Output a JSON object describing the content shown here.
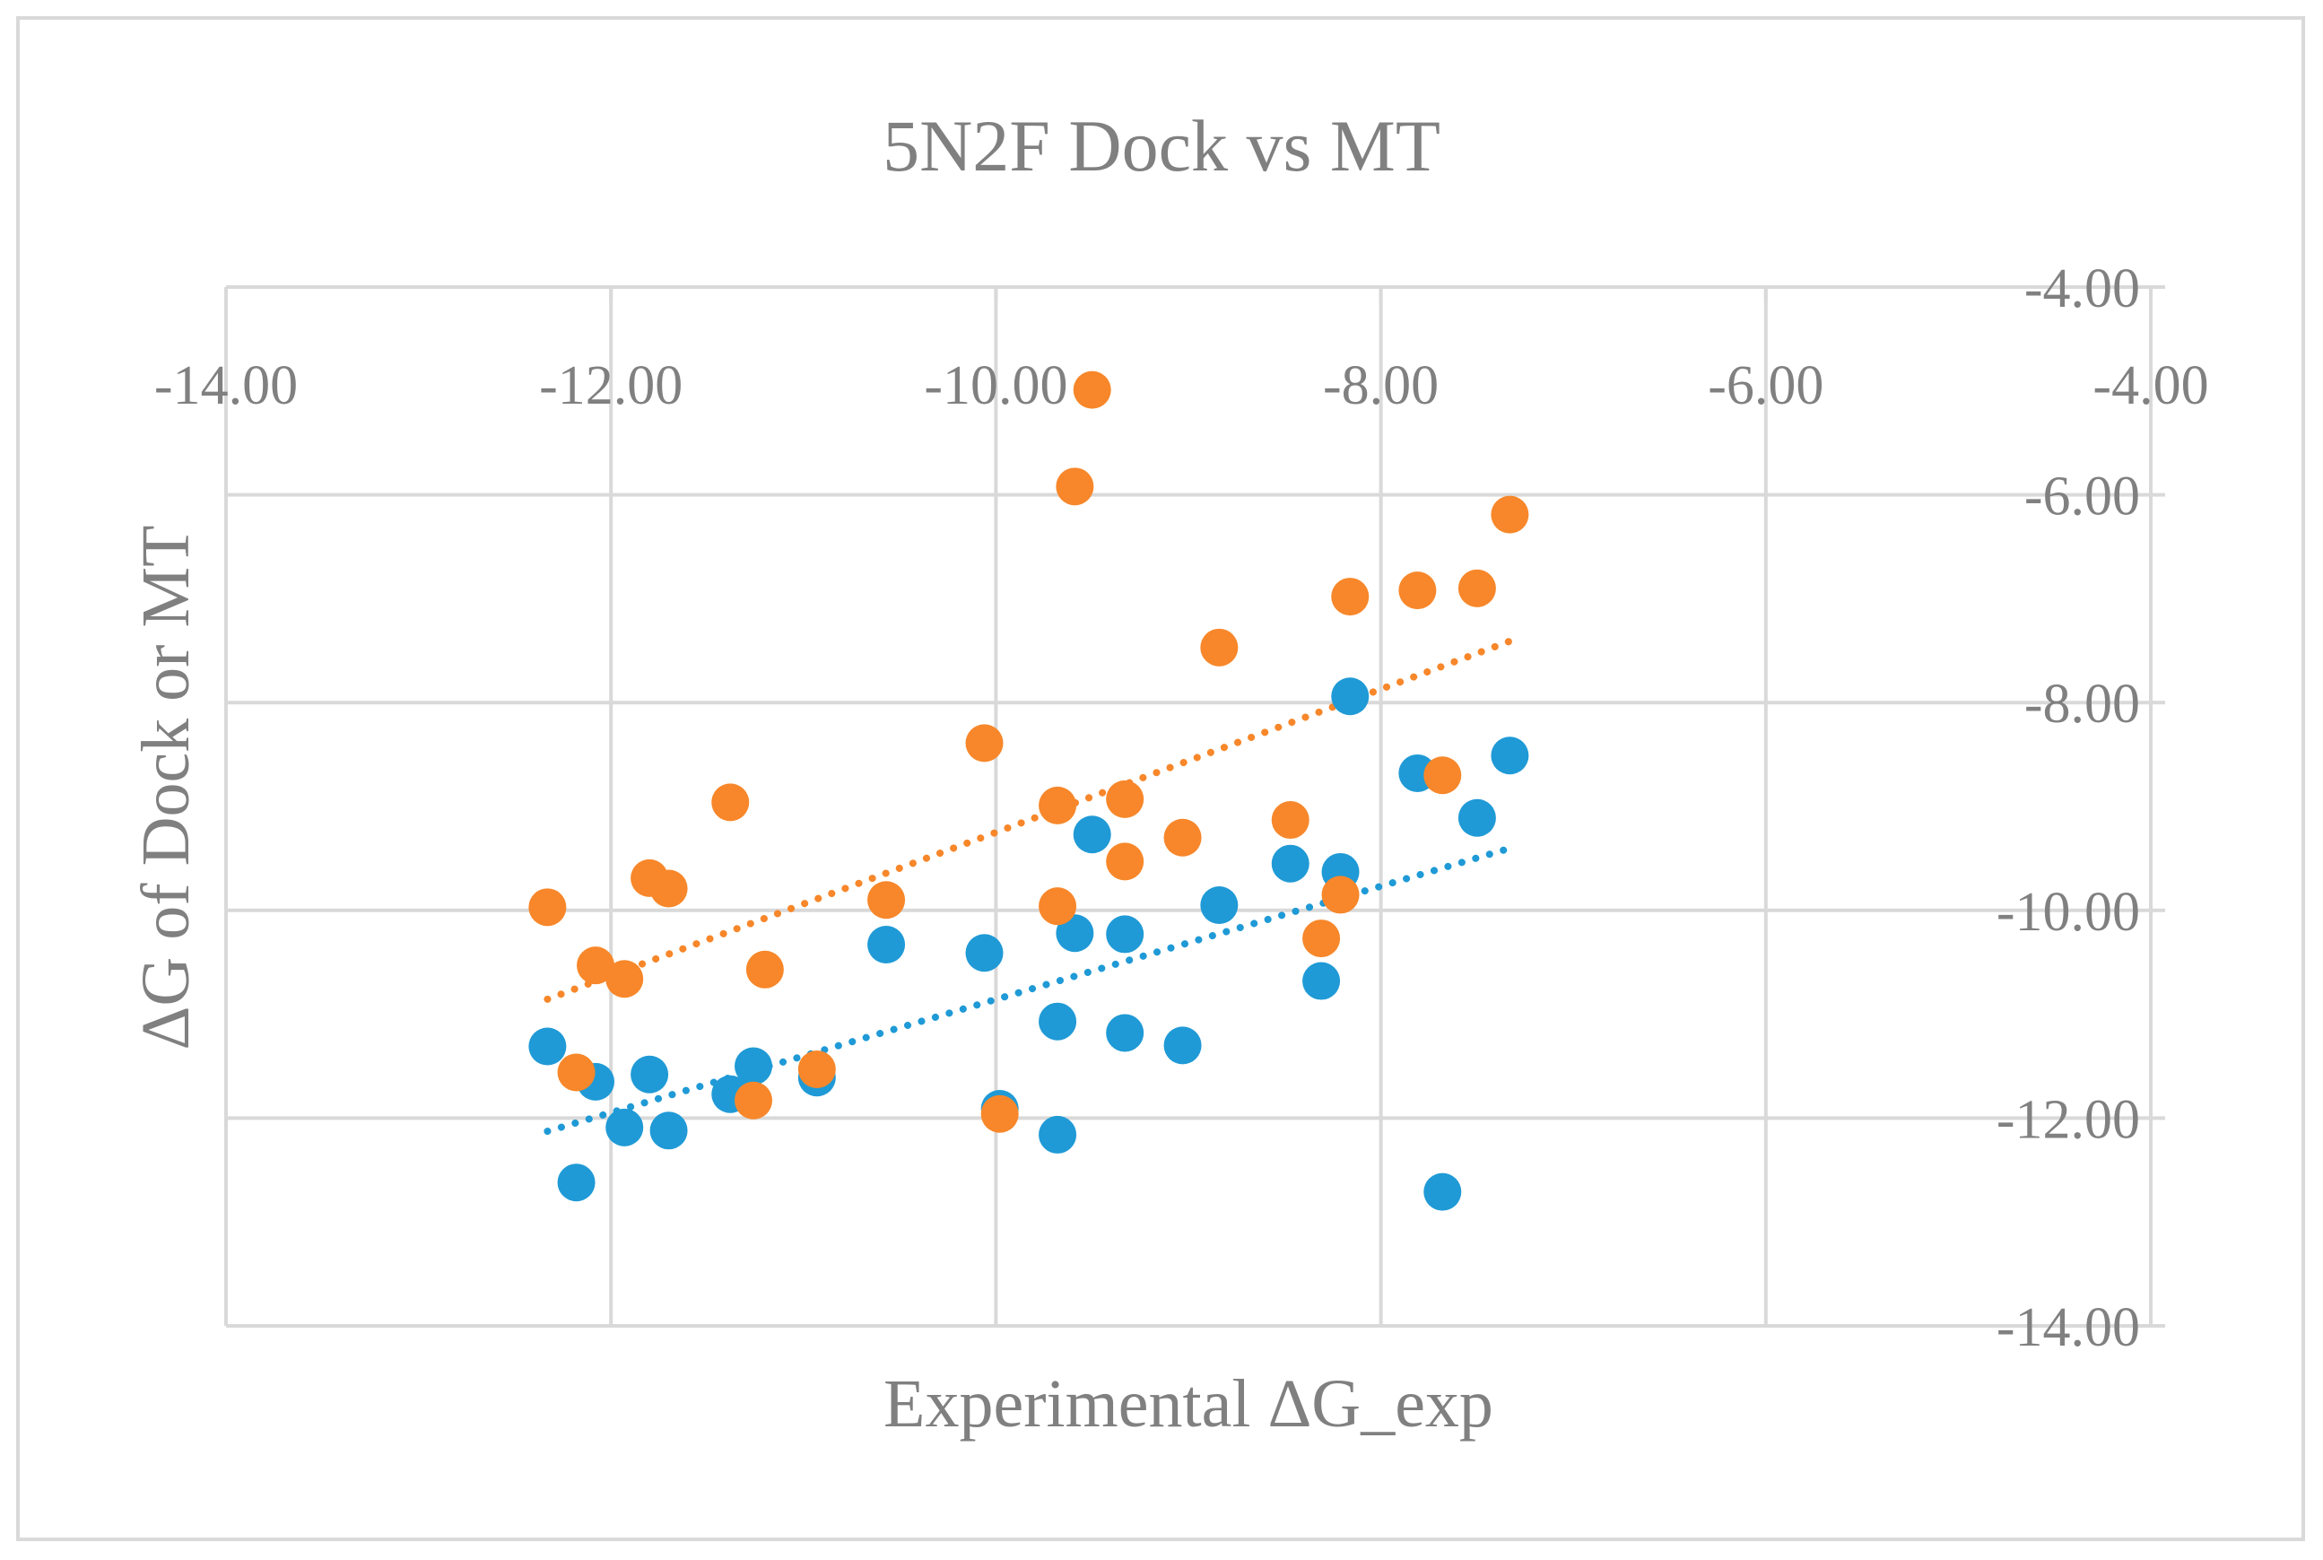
{
  "chart_data": {
    "type": "scatter",
    "title": "5N2F Dock vs MT",
    "xlabel": "Experimental ΔG_exp",
    "ylabel": "ΔG of Dock or MT",
    "xlim": [
      -14,
      -4
    ],
    "ylim": [
      -14,
      -4
    ],
    "x_ticks": [
      -14,
      -12,
      -10,
      -8,
      -6,
      -4
    ],
    "y_ticks": [
      -4,
      -6,
      -8,
      -10,
      -12,
      -14
    ],
    "x_tick_labels": [
      "-14.00",
      "-12.00",
      "-10.00",
      "-8.00",
      "-6.00",
      "-4.00"
    ],
    "y_tick_labels": [
      "-4.00",
      "-6.00",
      "-8.00",
      "-10.00",
      "-12.00",
      "-14.00"
    ],
    "grid": true,
    "series": [
      {
        "name": "Dock",
        "color": "#1f9ad6",
        "trendline": "linear-dotted",
        "points": [
          {
            "x": -12.33,
            "y": -11.31
          },
          {
            "x": -12.18,
            "y": -12.62
          },
          {
            "x": -12.08,
            "y": -11.65
          },
          {
            "x": -11.93,
            "y": -12.09
          },
          {
            "x": -11.8,
            "y": -11.58
          },
          {
            "x": -11.7,
            "y": -12.12
          },
          {
            "x": -11.38,
            "y": -11.77
          },
          {
            "x": -11.26,
            "y": -11.5
          },
          {
            "x": -10.93,
            "y": -11.61
          },
          {
            "x": -10.57,
            "y": -10.33
          },
          {
            "x": -10.06,
            "y": -10.41
          },
          {
            "x": -9.98,
            "y": -11.91
          },
          {
            "x": -9.68,
            "y": -11.07
          },
          {
            "x": -9.68,
            "y": -12.16
          },
          {
            "x": -9.59,
            "y": -10.22
          },
          {
            "x": -9.5,
            "y": -9.27
          },
          {
            "x": -9.33,
            "y": -11.18
          },
          {
            "x": -9.33,
            "y": -10.23
          },
          {
            "x": -9.03,
            "y": -11.3
          },
          {
            "x": -8.84,
            "y": -9.95
          },
          {
            "x": -8.47,
            "y": -9.55
          },
          {
            "x": -8.31,
            "y": -10.68
          },
          {
            "x": -8.21,
            "y": -9.63
          },
          {
            "x": -8.16,
            "y": -7.94
          },
          {
            "x": -7.81,
            "y": -8.68
          },
          {
            "x": -7.68,
            "y": -12.71
          },
          {
            "x": -7.5,
            "y": -9.11
          },
          {
            "x": -7.33,
            "y": -8.51
          }
        ]
      },
      {
        "name": "MT",
        "color": "#f7872a",
        "trendline": "linear-dotted",
        "points": [
          {
            "x": -12.33,
            "y": -9.97
          },
          {
            "x": -12.18,
            "y": -11.56
          },
          {
            "x": -12.08,
            "y": -10.53
          },
          {
            "x": -11.93,
            "y": -10.66
          },
          {
            "x": -11.8,
            "y": -9.69
          },
          {
            "x": -11.7,
            "y": -9.79
          },
          {
            "x": -11.38,
            "y": -8.96
          },
          {
            "x": -11.26,
            "y": -11.83
          },
          {
            "x": -11.2,
            "y": -10.57
          },
          {
            "x": -10.93,
            "y": -11.53
          },
          {
            "x": -10.57,
            "y": -9.9
          },
          {
            "x": -10.06,
            "y": -8.39
          },
          {
            "x": -9.98,
            "y": -11.96
          },
          {
            "x": -9.68,
            "y": -8.99
          },
          {
            "x": -9.68,
            "y": -9.96
          },
          {
            "x": -9.59,
            "y": -5.92
          },
          {
            "x": -9.5,
            "y": -4.99
          },
          {
            "x": -9.33,
            "y": -8.93
          },
          {
            "x": -9.33,
            "y": -9.53
          },
          {
            "x": -9.03,
            "y": -9.3
          },
          {
            "x": -8.84,
            "y": -7.47
          },
          {
            "x": -8.47,
            "y": -9.13
          },
          {
            "x": -8.31,
            "y": -10.27
          },
          {
            "x": -8.21,
            "y": -9.85
          },
          {
            "x": -8.16,
            "y": -6.98
          },
          {
            "x": -7.81,
            "y": -6.92
          },
          {
            "x": -7.68,
            "y": -8.7
          },
          {
            "x": -7.5,
            "y": -6.9
          },
          {
            "x": -7.33,
            "y": -6.19
          }
        ]
      }
    ]
  }
}
